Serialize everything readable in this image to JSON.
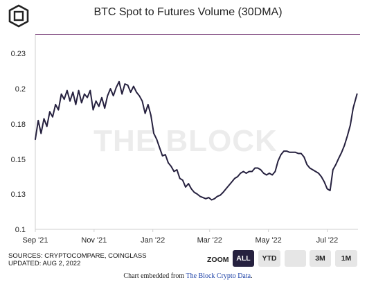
{
  "chart_data": {
    "type": "line",
    "title": "BTC Spot to Futures Volume (30DMA)",
    "y_ticks": [
      "0.23",
      "0.2",
      "0.18",
      "0.15",
      "0.13",
      "0.1"
    ],
    "y_tick_values": [
      0.23,
      0.2,
      0.18,
      0.15,
      0.13,
      0.1
    ],
    "x_ticks": [
      "Sep '21",
      "Nov '21",
      "Jan '22",
      "Mar '22",
      "May '22",
      "Jul '22"
    ],
    "x_tick_dates": [
      "2021-09-01",
      "2021-11-01",
      "2022-01-01",
      "2022-03-01",
      "2022-05-01",
      "2022-07-01"
    ],
    "ylim": [
      0.1,
      0.24
    ],
    "xlim": [
      "2021-09-01",
      "2022-08-02"
    ],
    "grid": false,
    "series": [
      {
        "color": "#26213f",
        "x": [
          "2021-09-01",
          "2021-09-04",
          "2021-09-07",
          "2021-09-10",
          "2021-09-13",
          "2021-09-16",
          "2021-09-19",
          "2021-09-22",
          "2021-09-25",
          "2021-09-28",
          "2021-10-01",
          "2021-10-04",
          "2021-10-07",
          "2021-10-10",
          "2021-10-13",
          "2021-10-16",
          "2021-10-19",
          "2021-10-22",
          "2021-10-25",
          "2021-10-28",
          "2021-10-31",
          "2021-11-03",
          "2021-11-06",
          "2021-11-09",
          "2021-11-12",
          "2021-11-15",
          "2021-11-18",
          "2021-11-21",
          "2021-11-24",
          "2021-11-27",
          "2021-11-30",
          "2021-12-03",
          "2021-12-06",
          "2021-12-09",
          "2021-12-12",
          "2021-12-15",
          "2021-12-18",
          "2021-12-21",
          "2021-12-24",
          "2021-12-27",
          "2021-12-30",
          "2022-01-02",
          "2022-01-05",
          "2022-01-08",
          "2022-01-11",
          "2022-01-14",
          "2022-01-17",
          "2022-01-20",
          "2022-01-23",
          "2022-01-26",
          "2022-01-29",
          "2022-02-01",
          "2022-02-04",
          "2022-02-07",
          "2022-02-10",
          "2022-02-13",
          "2022-02-16",
          "2022-02-19",
          "2022-02-22",
          "2022-02-25",
          "2022-02-28",
          "2022-03-03",
          "2022-03-06",
          "2022-03-09",
          "2022-03-12",
          "2022-03-15",
          "2022-03-18",
          "2022-03-21",
          "2022-03-24",
          "2022-03-27",
          "2022-03-30",
          "2022-04-02",
          "2022-04-05",
          "2022-04-08",
          "2022-04-11",
          "2022-04-14",
          "2022-04-17",
          "2022-04-20",
          "2022-04-23",
          "2022-04-26",
          "2022-04-29",
          "2022-05-02",
          "2022-05-05",
          "2022-05-08",
          "2022-05-11",
          "2022-05-14",
          "2022-05-17",
          "2022-05-20",
          "2022-05-23",
          "2022-05-26",
          "2022-05-29",
          "2022-06-01",
          "2022-06-04",
          "2022-06-07",
          "2022-06-10",
          "2022-06-13",
          "2022-06-16",
          "2022-06-19",
          "2022-06-22",
          "2022-06-25",
          "2022-06-28",
          "2022-07-01",
          "2022-07-04",
          "2022-07-07",
          "2022-07-10",
          "2022-07-13",
          "2022-07-16",
          "2022-07-19",
          "2022-07-22",
          "2022-07-25",
          "2022-07-28",
          "2022-08-01"
        ],
        "y": [
          0.167,
          0.182,
          0.172,
          0.183,
          0.178,
          0.187,
          0.184,
          0.191,
          0.188,
          0.197,
          0.194,
          0.199,
          0.193,
          0.198,
          0.191,
          0.199,
          0.192,
          0.197,
          0.195,
          0.199,
          0.188,
          0.193,
          0.19,
          0.195,
          0.189,
          0.196,
          0.2,
          0.196,
          0.201,
          0.206,
          0.197,
          0.204,
          0.203,
          0.198,
          0.202,
          0.198,
          0.196,
          0.193,
          0.186,
          0.191,
          0.185,
          0.172,
          0.167,
          0.16,
          0.153,
          0.154,
          0.148,
          0.146,
          0.143,
          0.144,
          0.139,
          0.138,
          0.134,
          0.136,
          0.133,
          0.131,
          0.13,
          0.128,
          0.127,
          0.126,
          0.127,
          0.125,
          0.126,
          0.128,
          0.129,
          0.131,
          0.133,
          0.135,
          0.137,
          0.139,
          0.14,
          0.142,
          0.143,
          0.142,
          0.143,
          0.143,
          0.145,
          0.145,
          0.144,
          0.142,
          0.141,
          0.142,
          0.141,
          0.143,
          0.149,
          0.154,
          0.157,
          0.157,
          0.156,
          0.156,
          0.156,
          0.155,
          0.155,
          0.152,
          0.147,
          0.145,
          0.144,
          0.143,
          0.142,
          0.14,
          0.137,
          0.133,
          0.132,
          0.144,
          0.147,
          0.151,
          0.156,
          0.162,
          0.17,
          0.179,
          0.189,
          0.197
        ]
      }
    ]
  },
  "watermark": "THE BLOCK",
  "footer": {
    "sources": "SOURCES: CRYPTOCOMPARE, COINGLASS",
    "updated": "UPDATED: AUG 2, 2022",
    "embed_prefix": "Chart embedded from ",
    "embed_link": "The Block Crypto Data",
    "embed_suffix": "."
  },
  "zoom": {
    "label": "ZOOM",
    "buttons": [
      {
        "label": "ALL",
        "active": true
      },
      {
        "label": "YTD",
        "active": false
      },
      {
        "label": "",
        "active": false
      },
      {
        "label": "3M",
        "active": false
      },
      {
        "label": "1M",
        "active": false
      }
    ]
  },
  "colors": {
    "line": "#26213f",
    "accent_rule": "#6a2b6a",
    "active_button": "#26213f"
  }
}
